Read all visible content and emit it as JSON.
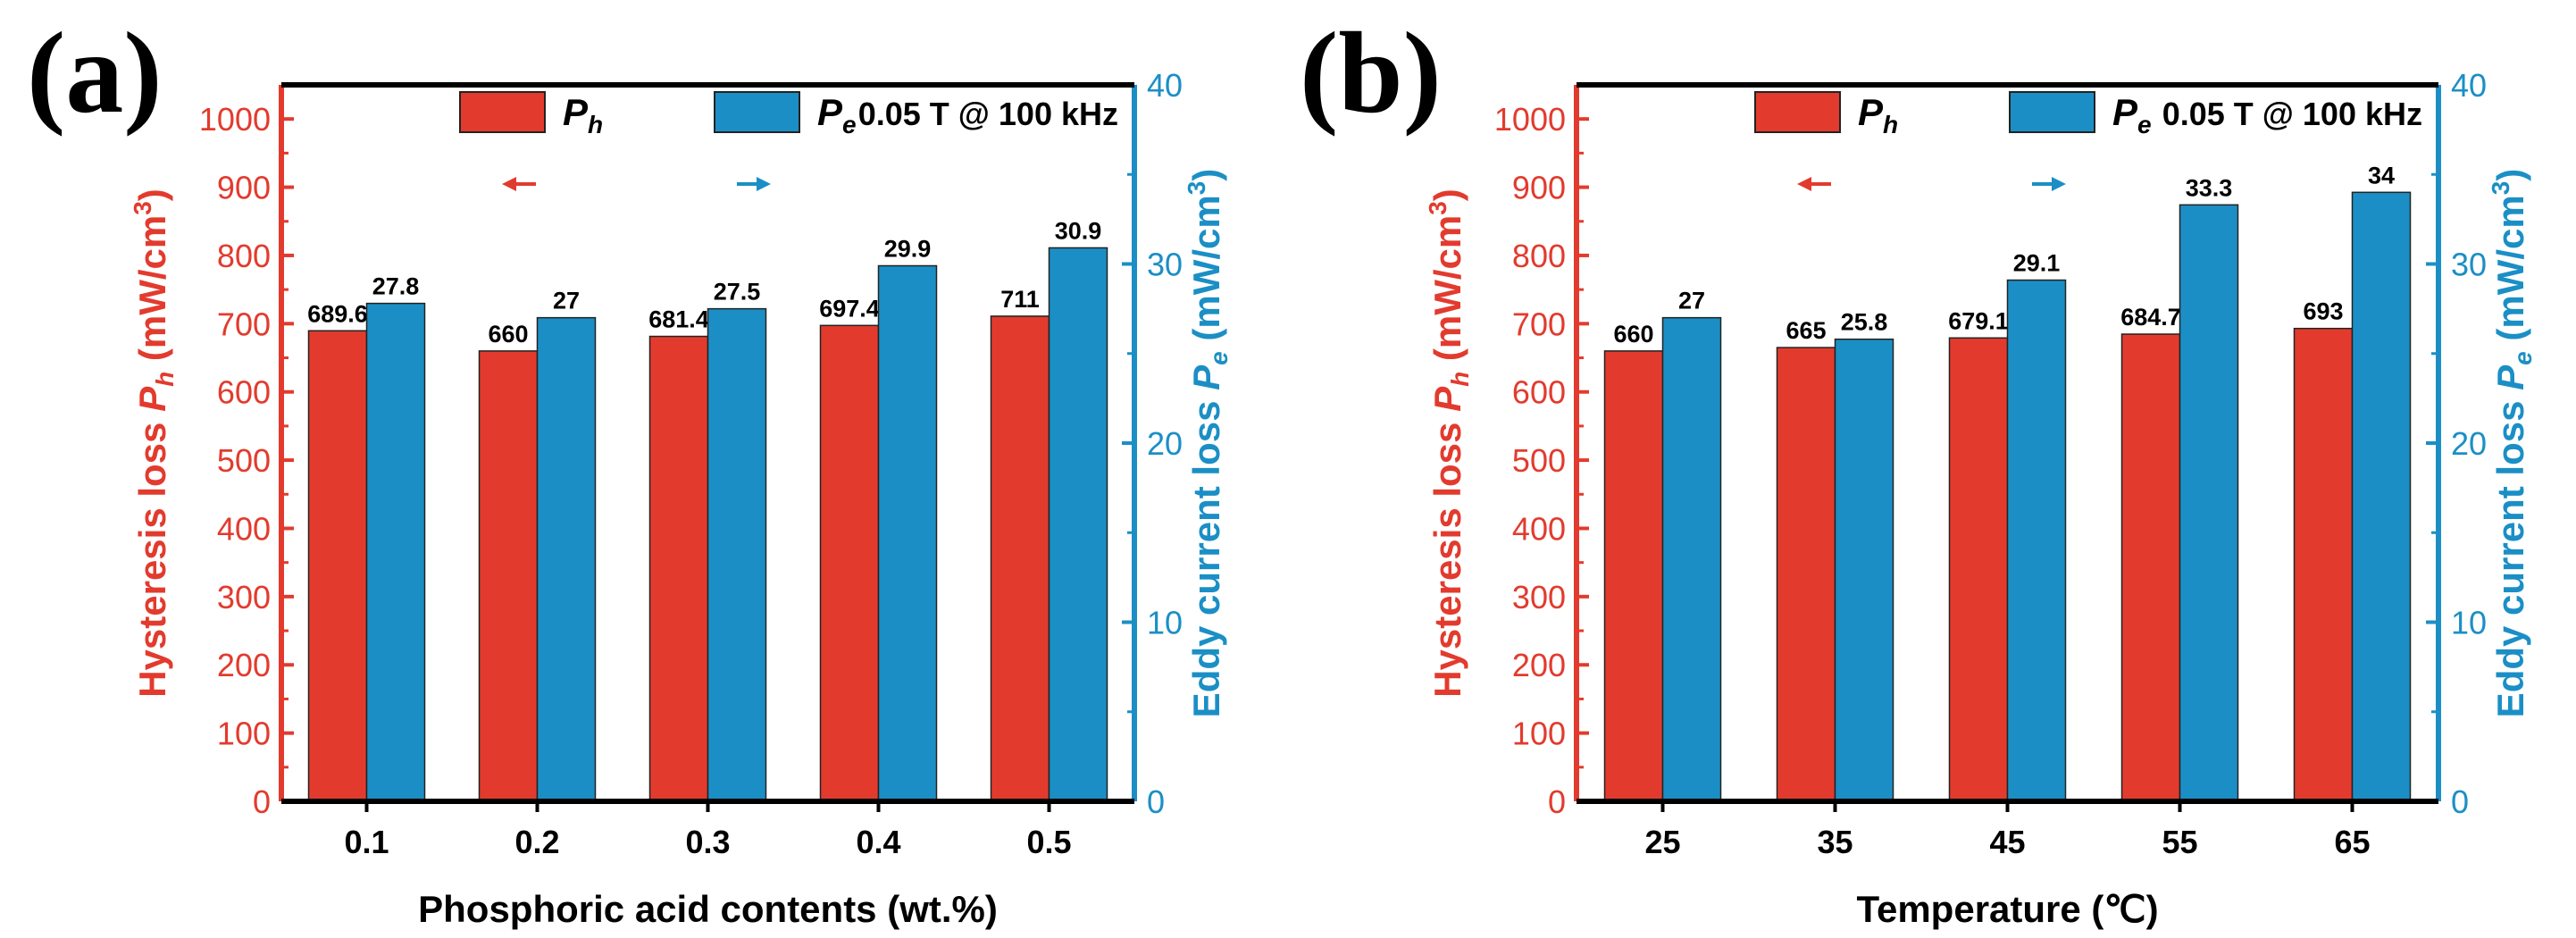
{
  "colors": {
    "hysteresis": "#e23b2e",
    "eddy": "#1b8fc5",
    "axis": "#000000"
  },
  "chart_data": [
    {
      "type": "bar",
      "panel_label": "(a)",
      "categories": [
        "0.1",
        "0.2",
        "0.3",
        "0.4",
        "0.5"
      ],
      "xlabel": "Phosphoric acid contents (wt.%)",
      "ylabel_left": {
        "prefix": "Hysteresis loss ",
        "symbol": "P",
        "sub": "h",
        "unit_open": " (mW/cm",
        "sup": "3",
        "unit_close": ")"
      },
      "ylabel_right": {
        "prefix": "Eddy current loss ",
        "symbol": "P",
        "sub": "e",
        "unit_open": " (mW/cm",
        "sup": "3",
        "unit_close": ")"
      },
      "ylim_left": [
        0,
        1050
      ],
      "yticks_left": [
        0,
        100,
        200,
        300,
        400,
        500,
        600,
        700,
        800,
        900,
        1000
      ],
      "ylim_right": [
        0,
        40
      ],
      "yticks_right": [
        0,
        10,
        20,
        30,
        40
      ],
      "annotation": "0.05 T @ 100 kHz",
      "legend": {
        "placement": "top",
        "entries": [
          {
            "symbol": "P",
            "sub": "h",
            "arrow": "left"
          },
          {
            "symbol": "P",
            "sub": "e",
            "arrow": "right"
          }
        ]
      },
      "series": [
        {
          "name": "Ph",
          "axis": "left",
          "values": [
            689.6,
            660,
            681.4,
            697.4,
            711
          ],
          "labels": [
            "689.6",
            "660",
            "681.4",
            "697.4",
            "711"
          ]
        },
        {
          "name": "Pe",
          "axis": "right",
          "values": [
            27.8,
            27,
            27.5,
            29.9,
            30.9
          ],
          "labels": [
            "27.8",
            "27",
            "27.5",
            "29.9",
            "30.9"
          ]
        }
      ]
    },
    {
      "type": "bar",
      "panel_label": "(b)",
      "categories": [
        "25",
        "35",
        "45",
        "55",
        "65"
      ],
      "xlabel": "Temperature (℃)",
      "ylabel_left": {
        "prefix": "Hysteresis loss ",
        "symbol": "P",
        "sub": "h",
        "unit_open": " (mW/cm",
        "sup": "3",
        "unit_close": ")"
      },
      "ylabel_right": {
        "prefix": "Eddy current loss ",
        "symbol": "P",
        "sub": "e",
        "unit_open": " (mW/cm",
        "sup": "3",
        "unit_close": ")"
      },
      "ylim_left": [
        0,
        1050
      ],
      "yticks_left": [
        0,
        100,
        200,
        300,
        400,
        500,
        600,
        700,
        800,
        900,
        1000
      ],
      "ylim_right": [
        0,
        40
      ],
      "yticks_right": [
        0,
        10,
        20,
        30,
        40
      ],
      "annotation": "0.05 T @ 100 kHz",
      "legend": {
        "placement": "top",
        "entries": [
          {
            "symbol": "P",
            "sub": "h",
            "arrow": "left"
          },
          {
            "symbol": "P",
            "sub": "e",
            "arrow": "right"
          }
        ]
      },
      "series": [
        {
          "name": "Ph",
          "axis": "left",
          "values": [
            660,
            665,
            679.1,
            684.7,
            693
          ],
          "labels": [
            "660",
            "665",
            "679.1",
            "684.7",
            "693"
          ]
        },
        {
          "name": "Pe",
          "axis": "right",
          "values": [
            27,
            25.8,
            29.1,
            33.3,
            34
          ],
          "labels": [
            "27",
            "25.8",
            "29.1",
            "33.3",
            "34"
          ]
        }
      ]
    }
  ]
}
